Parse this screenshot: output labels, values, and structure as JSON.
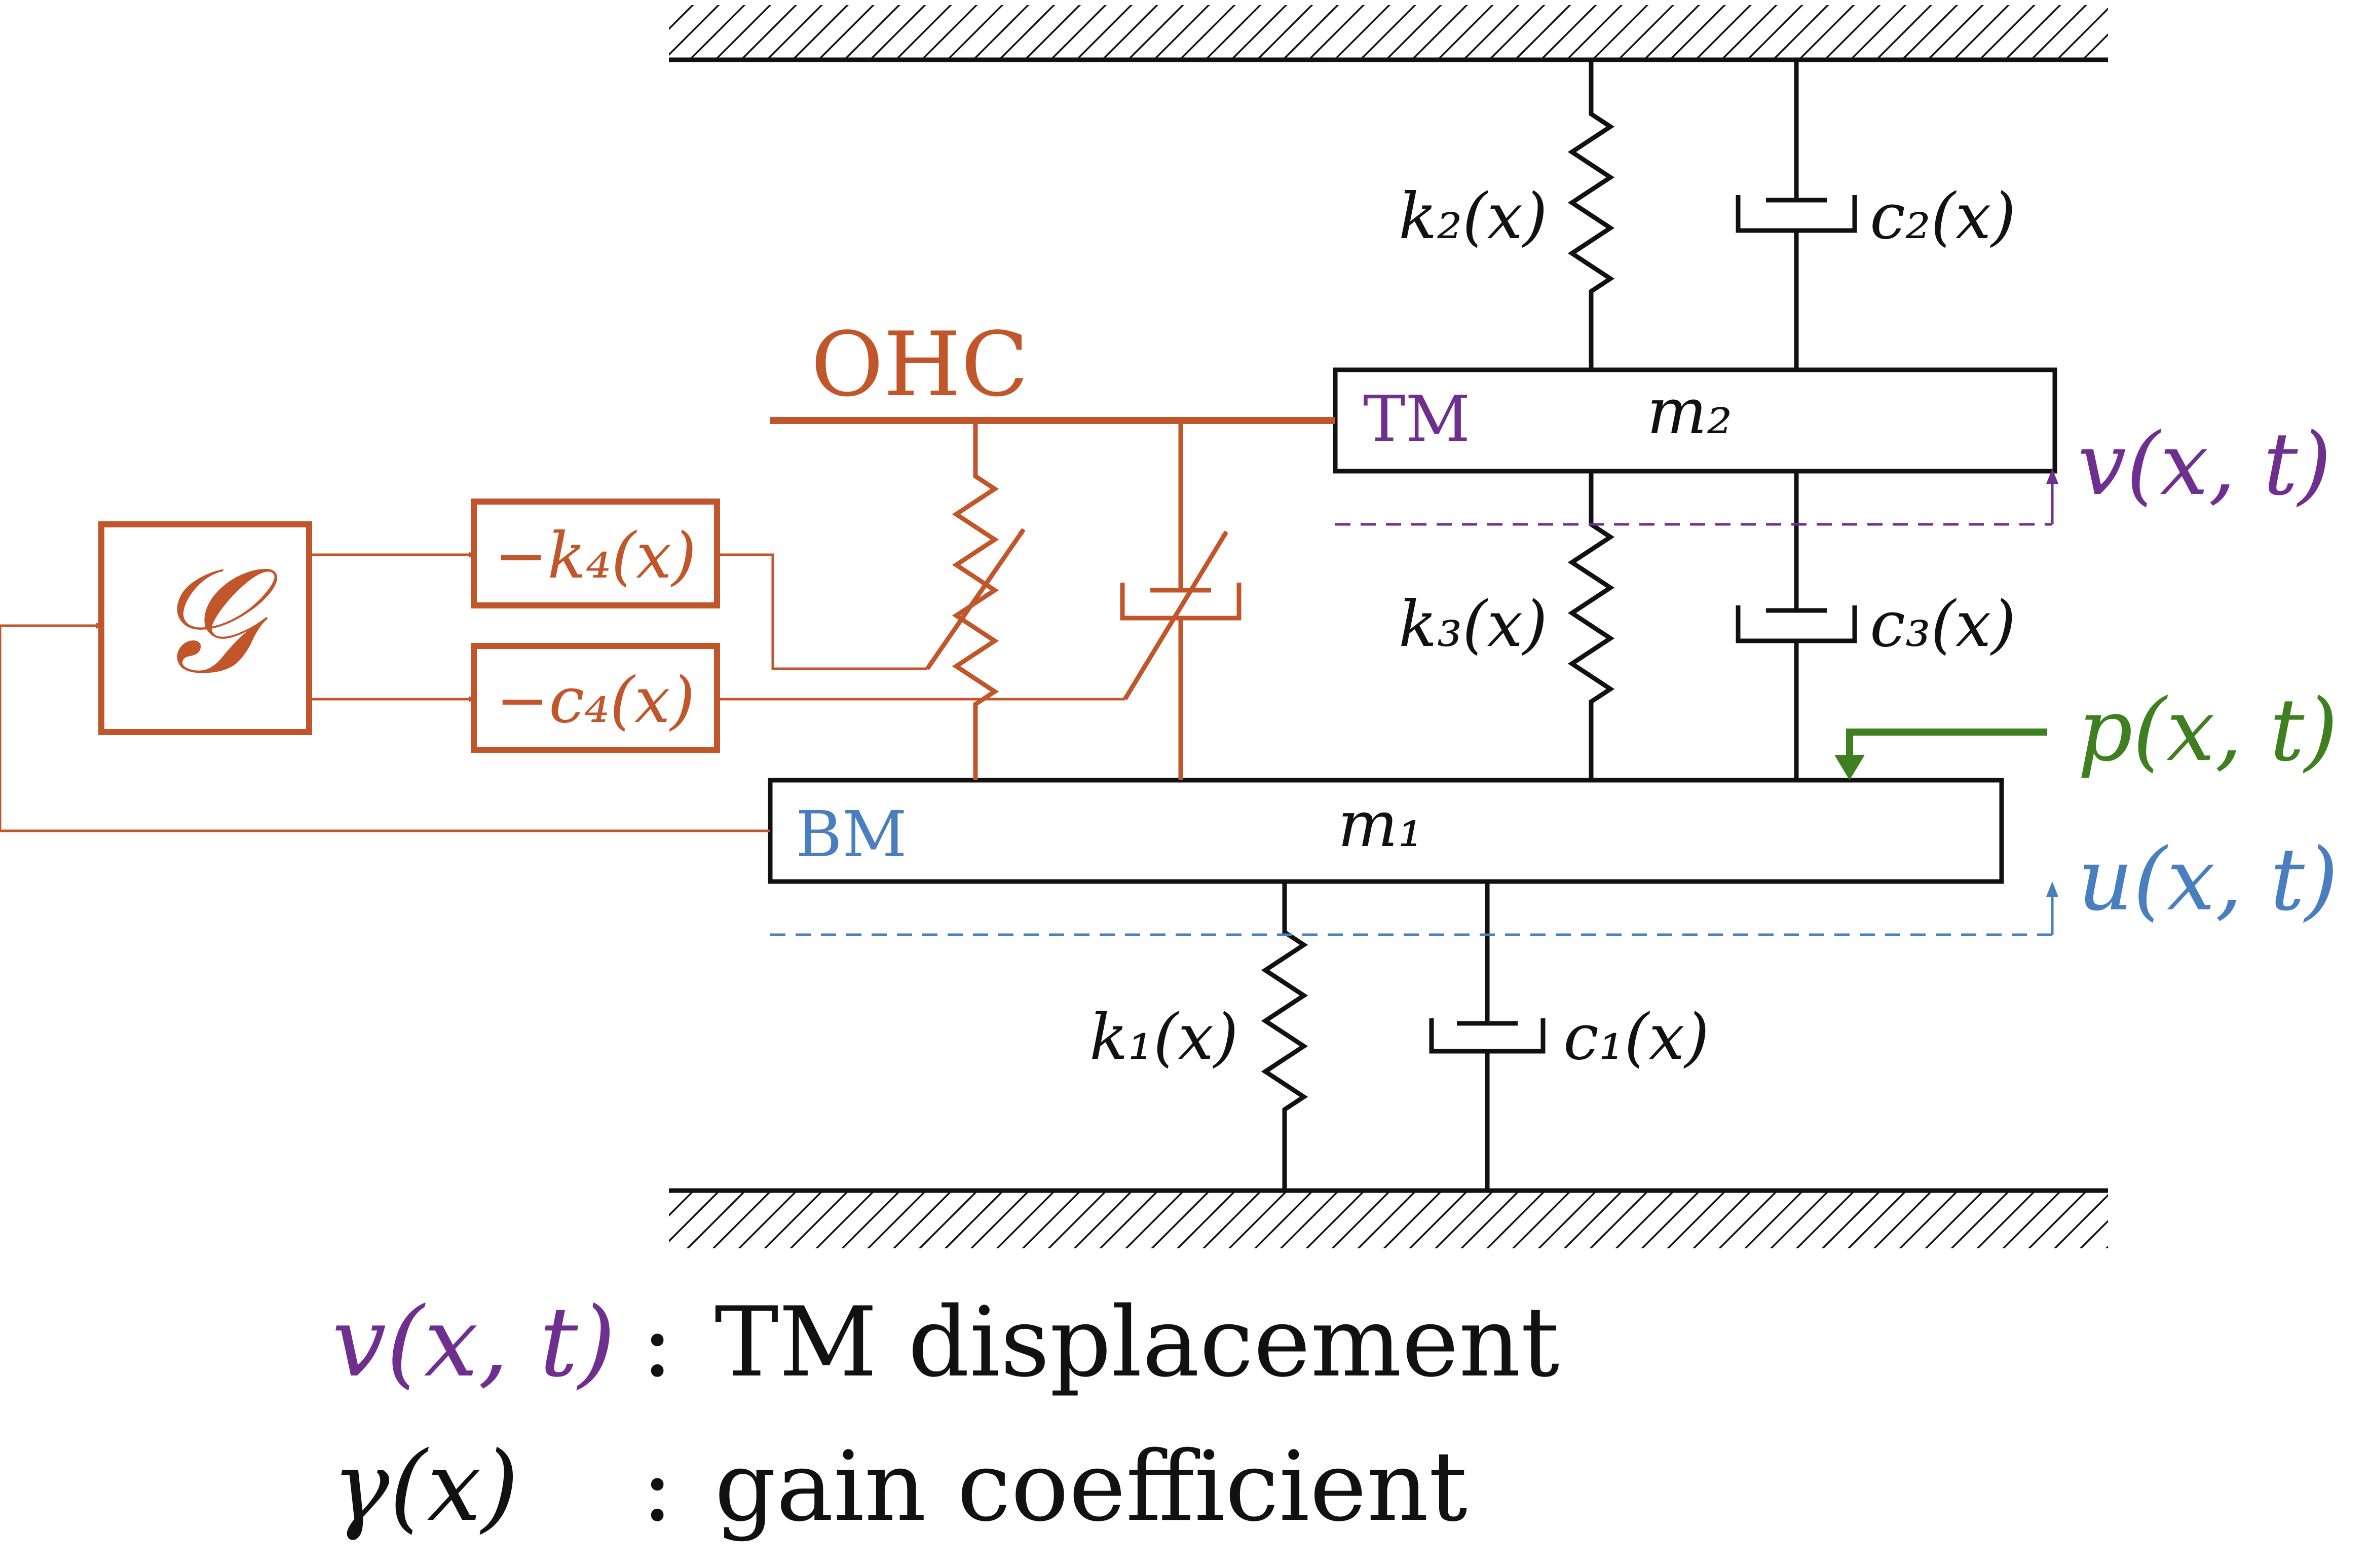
{
  "labels": {
    "k2": "k₂(x)",
    "c2": "c₂(x)",
    "k3": "k₃(x)",
    "c3": "c₃(x)",
    "k1": "k₁(x)",
    "c1": "c₁(x)",
    "m2": "m₂",
    "m1": "m₁",
    "tm": "TM",
    "bm": "BM",
    "ohc": "OHC",
    "gain_block": "𝒢",
    "neg_k4": "−k₄(x)",
    "neg_c4": "−c₄(x)",
    "v": "v(x, t)",
    "u": "u(x, t)",
    "p": "p(x, t)"
  },
  "legend": [
    {
      "symbol": "v(x, t)",
      "sep": ":",
      "text": "TM displacement"
    },
    {
      "symbol": "γ(x)",
      "sep": ":",
      "text": "gain coefficient"
    }
  ],
  "colors": {
    "ink": "#111111",
    "ohc": "#c0562a",
    "tm": "#6e2f8f",
    "bm": "#4a7fbf",
    "force": "#3f7f1f"
  }
}
